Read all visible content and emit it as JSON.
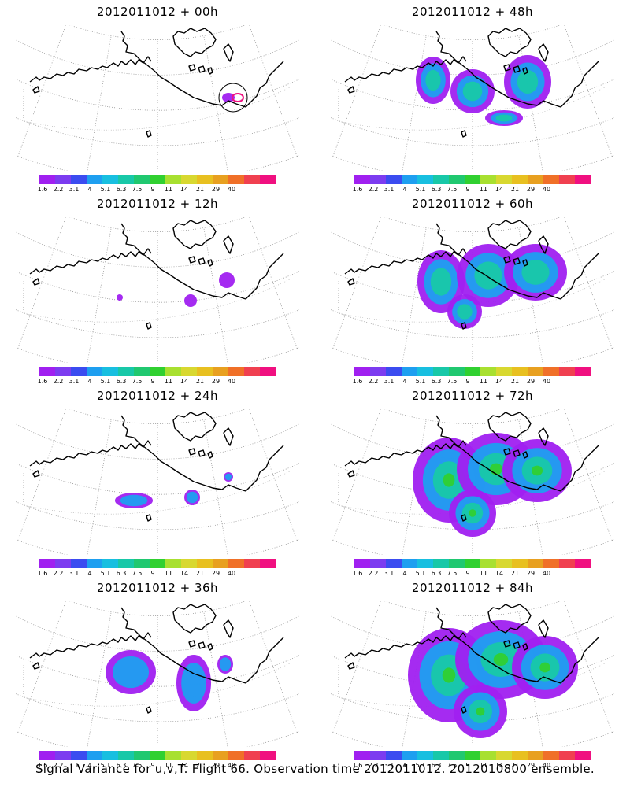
{
  "panels": [
    {
      "title": "2012011012 + 00h",
      "level": 0
    },
    {
      "title": "2012011012 + 48h",
      "level": 4
    },
    {
      "title": "2012011012 + 12h",
      "level": 1
    },
    {
      "title": "2012011012 + 60h",
      "level": 5
    },
    {
      "title": "2012011012 + 24h",
      "level": 2
    },
    {
      "title": "2012011012 + 72h",
      "level": 6
    },
    {
      "title": "2012011012 + 36h",
      "level": 3
    },
    {
      "title": "2012011012 + 84h",
      "level": 7
    }
  ],
  "colorbar": {
    "colors": [
      "#a020f0",
      "#7c3cf0",
      "#3b4cf0",
      "#1e9ff0",
      "#18bfe0",
      "#18c8a8",
      "#20c870",
      "#30d030",
      "#a8e030",
      "#d8d830",
      "#e8c020",
      "#e8a020",
      "#f07028",
      "#f04050",
      "#f01080"
    ],
    "labels": [
      "1.6",
      "2.2",
      "3.1",
      "4",
      "5.1",
      "6.3",
      "7.5",
      "9",
      "11",
      "14",
      "21",
      "29",
      "40"
    ]
  },
  "caption": "Signal Variance for u,v,T. Flight 66. Observation time 2012011012. 2012010800 ensemble."
}
